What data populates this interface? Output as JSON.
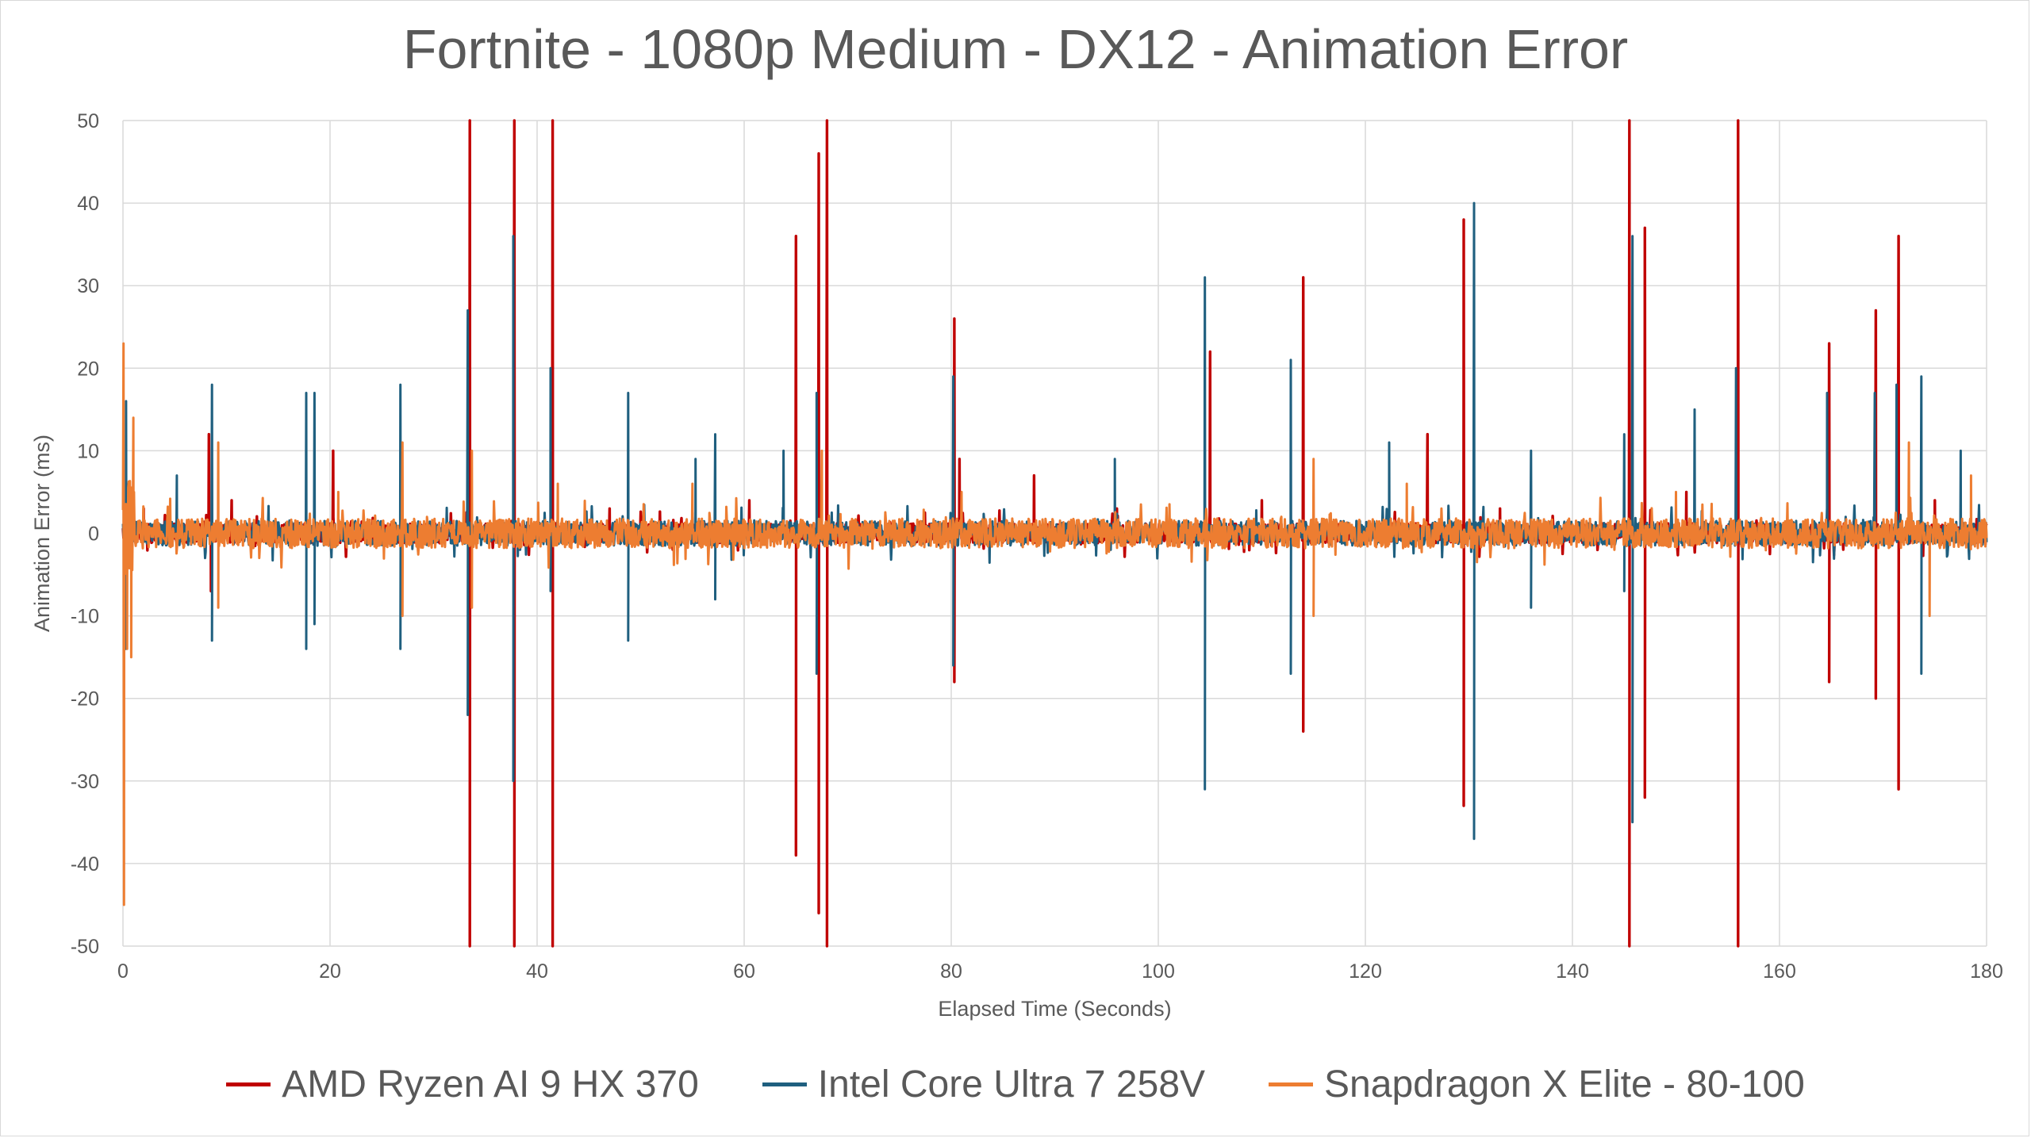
{
  "chart_data": {
    "type": "line",
    "title": "Fortnite - 1080p Medium - DX12 - Animation Error",
    "xlabel": "Elapsed Time (Seconds)",
    "ylabel": "Animation Error (ms)",
    "xlim": [
      0,
      180
    ],
    "ylim": [
      -50,
      50
    ],
    "x_ticks": [
      0,
      20,
      40,
      60,
      80,
      100,
      120,
      140,
      160,
      180
    ],
    "y_ticks": [
      50,
      40,
      30,
      20,
      10,
      0,
      -10,
      -20,
      -30,
      -40,
      -50
    ],
    "grid": true,
    "legend_position": "bottom",
    "series": [
      {
        "name": "AMD Ryzen AI 9 HX 370",
        "color": "#c00000",
        "noise_amplitude": 1.2,
        "spikes": [
          [
            8.3,
            12
          ],
          [
            8.5,
            -7
          ],
          [
            33.5,
            50
          ],
          [
            33.5,
            -50
          ],
          [
            37.8,
            50
          ],
          [
            37.8,
            -50
          ],
          [
            41.5,
            50
          ],
          [
            41.5,
            -50
          ],
          [
            65.0,
            36
          ],
          [
            65.0,
            -39
          ],
          [
            67.2,
            46
          ],
          [
            67.2,
            -46
          ],
          [
            68.0,
            50
          ],
          [
            68.0,
            -50
          ],
          [
            80.3,
            26
          ],
          [
            80.3,
            -18
          ],
          [
            80.8,
            9
          ],
          [
            88.0,
            7
          ],
          [
            105.0,
            22
          ],
          [
            114.0,
            31
          ],
          [
            114.0,
            -24
          ],
          [
            126.0,
            12
          ],
          [
            129.5,
            38
          ],
          [
            129.5,
            -33
          ],
          [
            145.5,
            50
          ],
          [
            145.5,
            -50
          ],
          [
            147.0,
            37
          ],
          [
            147.0,
            -32
          ],
          [
            156.0,
            50
          ],
          [
            156.0,
            -50
          ],
          [
            164.8,
            23
          ],
          [
            164.8,
            -18
          ],
          [
            169.3,
            27
          ],
          [
            169.3,
            -20
          ],
          [
            171.5,
            36
          ],
          [
            171.5,
            -31
          ],
          [
            20.3,
            10
          ],
          [
            2.0,
            3
          ],
          [
            10.5,
            4
          ],
          [
            47.0,
            3
          ],
          [
            60.5,
            4
          ],
          [
            96.0,
            3
          ],
          [
            110.0,
            4
          ],
          [
            133.0,
            3
          ],
          [
            151.0,
            5
          ],
          [
            175.0,
            4
          ]
        ]
      },
      {
        "name": "Intel Core Ultra 7 258V",
        "color": "#1f5f7f",
        "noise_amplitude": 1.5,
        "spikes": [
          [
            0.3,
            16
          ],
          [
            0.3,
            -14
          ],
          [
            5.2,
            7
          ],
          [
            8.6,
            18
          ],
          [
            8.6,
            -13
          ],
          [
            17.7,
            17
          ],
          [
            17.7,
            -14
          ],
          [
            18.5,
            17
          ],
          [
            18.5,
            -11
          ],
          [
            26.8,
            18
          ],
          [
            26.8,
            -14
          ],
          [
            33.3,
            27
          ],
          [
            33.3,
            -22
          ],
          [
            37.7,
            36
          ],
          [
            37.7,
            -30
          ],
          [
            41.3,
            20
          ],
          [
            41.3,
            -7
          ],
          [
            48.8,
            17
          ],
          [
            48.8,
            -13
          ],
          [
            55.3,
            9
          ],
          [
            57.2,
            12
          ],
          [
            57.2,
            -8
          ],
          [
            63.8,
            10
          ],
          [
            67.0,
            17
          ],
          [
            67.0,
            -17
          ],
          [
            80.2,
            19
          ],
          [
            80.2,
            -16
          ],
          [
            95.8,
            9
          ],
          [
            104.5,
            31
          ],
          [
            104.5,
            -31
          ],
          [
            112.8,
            21
          ],
          [
            112.8,
            -17
          ],
          [
            122.3,
            11
          ],
          [
            130.5,
            40
          ],
          [
            130.5,
            -37
          ],
          [
            136.0,
            10
          ],
          [
            136.0,
            -9
          ],
          [
            145.0,
            12
          ],
          [
            145.0,
            -7
          ],
          [
            145.8,
            36
          ],
          [
            145.8,
            -35
          ],
          [
            151.8,
            15
          ],
          [
            155.8,
            20
          ],
          [
            164.6,
            17
          ],
          [
            169.2,
            17
          ],
          [
            171.3,
            18
          ],
          [
            173.7,
            19
          ],
          [
            173.7,
            -17
          ],
          [
            177.5,
            10
          ]
        ]
      },
      {
        "name": "Snapdragon X Elite - 80-100",
        "color": "#ed7d31",
        "noise_amplitude": 1.8,
        "spikes": [
          [
            0.05,
            23
          ],
          [
            0.1,
            -45
          ],
          [
            0.4,
            -14
          ],
          [
            0.8,
            -15
          ],
          [
            1.0,
            14
          ],
          [
            9.2,
            11
          ],
          [
            9.2,
            -9
          ],
          [
            20.8,
            5
          ],
          [
            27.0,
            11
          ],
          [
            27.0,
            -10
          ],
          [
            33.7,
            10
          ],
          [
            33.7,
            -9
          ],
          [
            42.0,
            6
          ],
          [
            55.0,
            6
          ],
          [
            67.5,
            10
          ],
          [
            81.0,
            5
          ],
          [
            115.0,
            9
          ],
          [
            115.0,
            -10
          ],
          [
            124.0,
            6
          ],
          [
            150.0,
            5
          ],
          [
            172.5,
            11
          ],
          [
            174.5,
            -10
          ],
          [
            178.5,
            7
          ]
        ]
      }
    ]
  }
}
